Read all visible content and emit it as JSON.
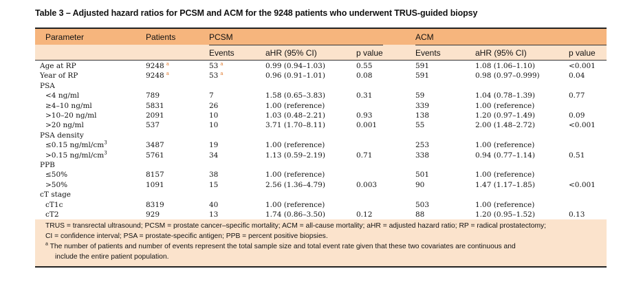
{
  "title": "Table 3 – Adjusted hazard ratios for PCSM and ACM for the 9248 patients who underwent TRUS-guided biopsy",
  "header": {
    "parameter": "Parameter",
    "patients": "Patients",
    "pcsm": "PCSM",
    "acm": "ACM",
    "events": "Events",
    "ahr": "aHR (95% CI)",
    "pvalue": "p value"
  },
  "rows": [
    {
      "param": "Age at RP",
      "indent": false,
      "patients": "9248",
      "psup": "a",
      "pe": "53",
      "pesup": "a",
      "pahr": "0.99 (0.94–1.03)",
      "pp": "0.55",
      "ae": "591",
      "aahr": "1.08 (1.06–1.10)",
      "ap": "<0.001"
    },
    {
      "param": "Year of RP",
      "indent": false,
      "patients": "9248",
      "psup": "a",
      "pe": "53",
      "pesup": "a",
      "pahr": "0.96 (0.91–1.01)",
      "pp": "0.08",
      "ae": "591",
      "aahr": "0.98 (0.97–0.999)",
      "ap": "0.04"
    },
    {
      "param": "PSA",
      "indent": false,
      "patients": "",
      "pe": "",
      "pahr": "",
      "pp": "",
      "ae": "",
      "aahr": "",
      "ap": ""
    },
    {
      "param": "<4 ng/ml",
      "indent": true,
      "patients": "789",
      "pe": "7",
      "pahr": "1.58 (0.65–3.83)",
      "pp": "0.31",
      "ae": "59",
      "aahr": "1.04 (0.78–1.39)",
      "ap": "0.77"
    },
    {
      "param": "≥4–10 ng/ml",
      "indent": true,
      "patients": "5831",
      "pe": "26",
      "pahr": "1.00 (reference)",
      "pp": "",
      "ae": "339",
      "aahr": "1.00 (reference)",
      "ap": ""
    },
    {
      "param": ">10–20 ng/ml",
      "indent": true,
      "patients": "2091",
      "pe": "10",
      "pahr": "1.03 (0.48–2.21)",
      "pp": "0.93",
      "ae": "138",
      "aahr": "1.20 (0.97–1.49)",
      "ap": "0.09"
    },
    {
      "param": ">20 ng/ml",
      "indent": true,
      "patients": "537",
      "pe": "10",
      "pahr": "3.71 (1.70–8.11)",
      "pp": "0.001",
      "ae": "55",
      "aahr": "2.00 (1.48–2.72)",
      "ap": "<0.001"
    },
    {
      "param": "PSA density",
      "indent": false,
      "patients": "",
      "pe": "",
      "pahr": "",
      "pp": "",
      "ae": "",
      "aahr": "",
      "ap": ""
    },
    {
      "param": "≤0.15 ng/ml/cm",
      "psup3": "3",
      "indent": true,
      "patients": "3487",
      "pe": "19",
      "pahr": "1.00 (reference)",
      "pp": "",
      "ae": "253",
      "aahr": "1.00 (reference)",
      "ap": ""
    },
    {
      "param": ">0.15 ng/ml/cm",
      "psup3": "3",
      "indent": true,
      "patients": "5761",
      "pe": "34",
      "pahr": "1.13 (0.59–2.19)",
      "pp": "0.71",
      "ae": "338",
      "aahr": "0.94 (0.77–1.14)",
      "ap": "0.51"
    },
    {
      "param": "PPB",
      "indent": false,
      "patients": "",
      "pe": "",
      "pahr": "",
      "pp": "",
      "ae": "",
      "aahr": "",
      "ap": ""
    },
    {
      "param": "≤50%",
      "indent": true,
      "patients": "8157",
      "pe": "38",
      "pahr": "1.00 (reference)",
      "pp": "",
      "ae": "501",
      "aahr": "1.00 (reference)",
      "ap": ""
    },
    {
      "param": ">50%",
      "indent": true,
      "patients": "1091",
      "pe": "15",
      "pahr": "2.56 (1.36–4.79)",
      "pp": "0.003",
      "ae": "90",
      "aahr": "1.47 (1.17–1.85)",
      "ap": "<0.001"
    },
    {
      "param": "cT stage",
      "indent": false,
      "patients": "",
      "pe": "",
      "pahr": "",
      "pp": "",
      "ae": "",
      "aahr": "",
      "ap": ""
    },
    {
      "param": "cT1c",
      "indent": true,
      "patients": "8319",
      "pe": "40",
      "pahr": "1.00 (reference)",
      "pp": "",
      "ae": "503",
      "aahr": "1.00 (reference)",
      "ap": ""
    },
    {
      "param": "cT2",
      "indent": true,
      "patients": "929",
      "pe": "13",
      "pahr": "1.74 (0.86–3.50)",
      "pp": "0.12",
      "ae": "88",
      "aahr": "1.20 (0.95–1.52)",
      "ap": "0.13"
    }
  ],
  "footnotes": {
    "line1": "TRUS = transrectal ultrasound; PCSM = prostate cancer–specific mortality; ACM = all-cause mortality; aHR = adjusted hazard ratio; RP = radical prostatectomy;",
    "line2": "CI = confidence interval; PSA = prostate-specific antigen; PPB = percent positive biopsies.",
    "note_mark": "a",
    "line3": "The number of patients and number of events represent the total sample size and total event rate given that these two covariates are continuous and",
    "line4": "include the entire patient population."
  },
  "colors": {
    "header_dark": "#f6b57d",
    "header_light": "#fbe3cc",
    "superscript": "#e07a2e"
  }
}
